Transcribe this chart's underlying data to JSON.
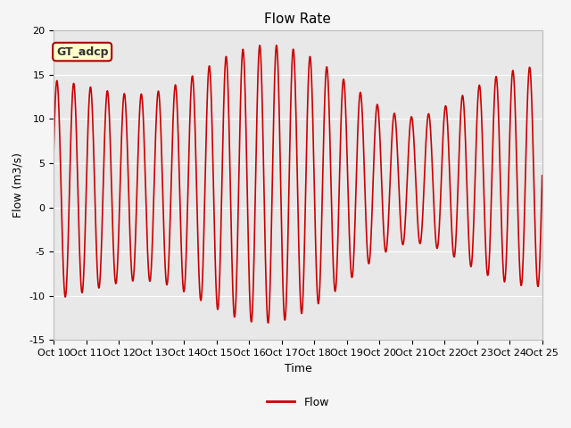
{
  "title": "Flow Rate",
  "xlabel": "Time",
  "ylabel": "Flow (m3/s)",
  "ylim": [
    -15,
    20
  ],
  "yticks": [
    -15,
    -10,
    -5,
    0,
    5,
    10,
    15,
    20
  ],
  "xlim_start": 0,
  "xlim_end": 15,
  "xtick_labels": [
    "Oct 10",
    "Oct 11",
    "Oct 12",
    "Oct 13",
    "Oct 14",
    "Oct 15",
    "Oct 16",
    "Oct 17",
    "Oct 18",
    "Oct 19",
    "Oct 20",
    "Oct 21",
    "Oct 22",
    "Oct 23",
    "Oct 24",
    "Oct 25"
  ],
  "line_color": "#cc0000",
  "line_width": 1.2,
  "fig_bg_color": "#f5f5f5",
  "plot_bg_color": "#e8e8e8",
  "grid_color": "#ffffff",
  "annotation_text": "GT_adcp",
  "annotation_bg": "#ffffcc",
  "annotation_border": "#aa0000",
  "legend_label": "Flow",
  "title_fontsize": 11,
  "label_fontsize": 9,
  "tick_fontsize": 8
}
